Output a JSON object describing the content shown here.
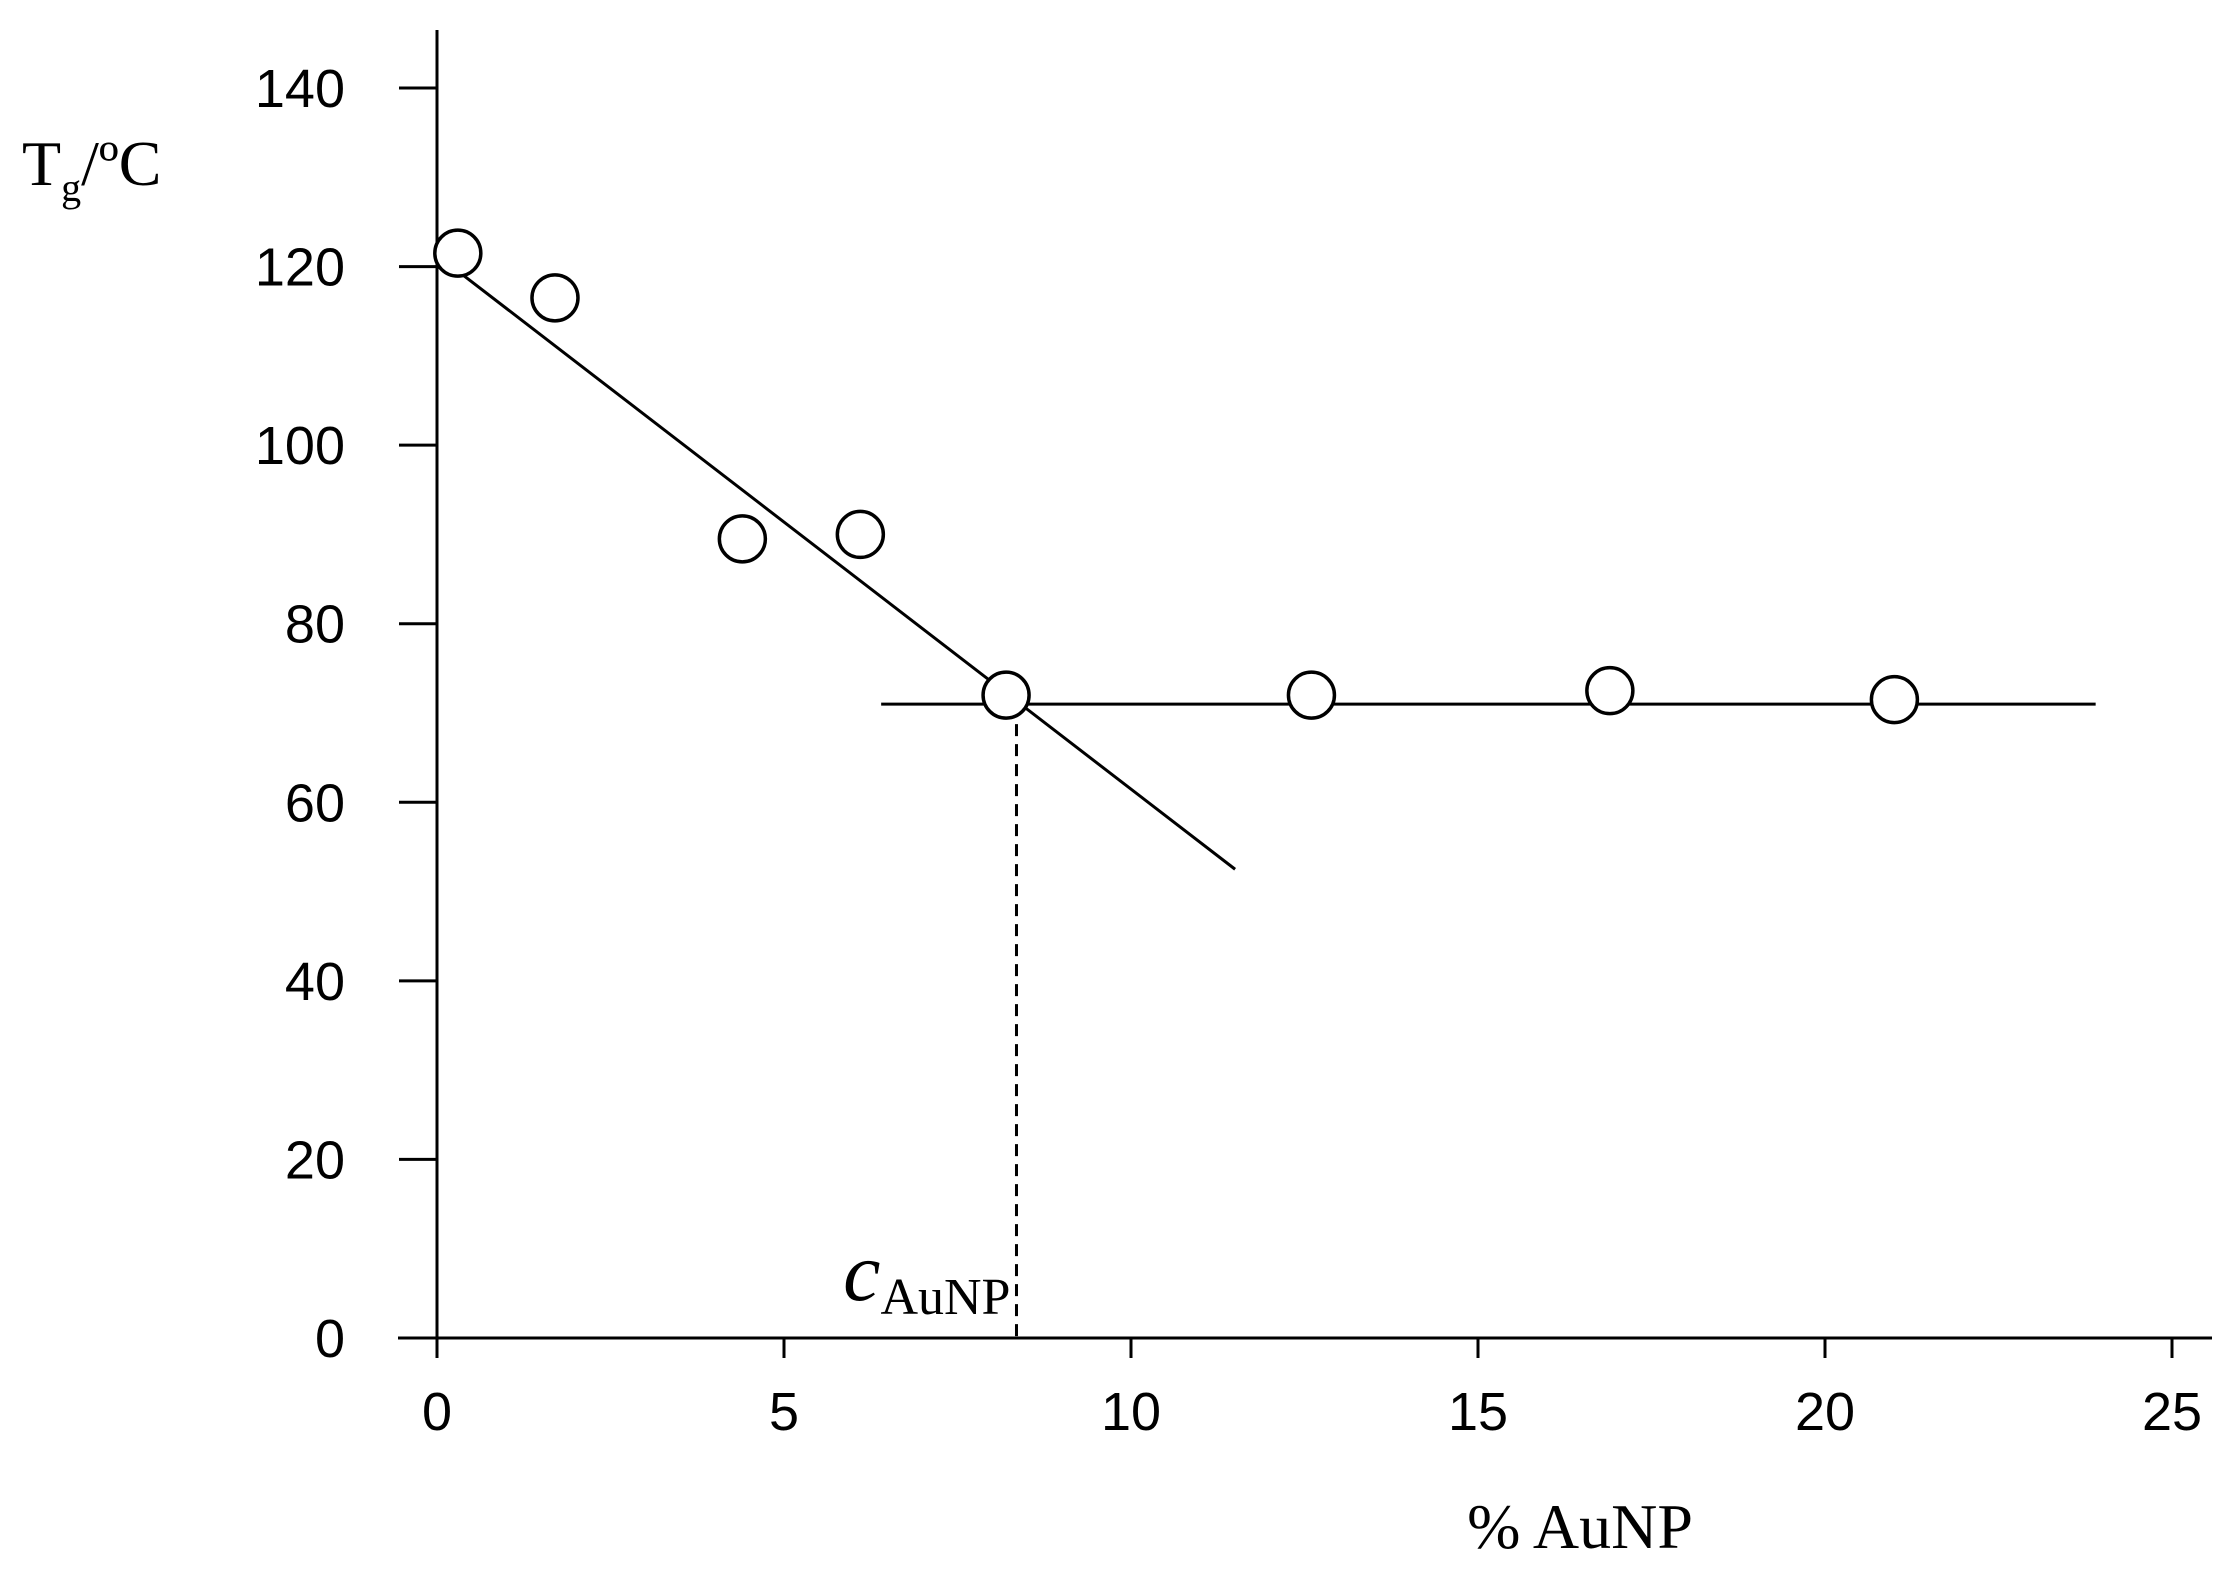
{
  "chart_data": {
    "type": "scatter",
    "ylabel": {
      "main": "T",
      "sub": "g",
      "tail": "/ºC"
    },
    "xlabel": "% AuNP",
    "xlim": [
      0,
      25
    ],
    "ylim": [
      0,
      140
    ],
    "x_ticks": [
      "0",
      "5",
      "10",
      "15",
      "20",
      "25"
    ],
    "y_ticks": [
      "0",
      "20",
      "40",
      "60",
      "80",
      "100",
      "120",
      "140"
    ],
    "series": [
      {
        "points": [
          {
            "x": 0.3,
            "y": 121.5
          },
          {
            "x": 1.7,
            "y": 116.5
          },
          {
            "x": 4.4,
            "y": 89.5
          },
          {
            "x": 6.1,
            "y": 90
          },
          {
            "x": 8.2,
            "y": 72
          },
          {
            "x": 12.6,
            "y": 72
          },
          {
            "x": 16.9,
            "y": 72.5
          },
          {
            "x": 21,
            "y": 71.5
          }
        ]
      }
    ],
    "fit_lines": [
      {
        "from": {
          "x": 0.3,
          "y": 119.5
        },
        "to": {
          "x": 11.5,
          "y": 52.5
        }
      },
      {
        "from": {
          "x": 6.4,
          "y": 71
        },
        "to": {
          "x": 23.9,
          "y": 71
        }
      }
    ],
    "annotation": {
      "label_main": "c",
      "label_sub": "AuNP",
      "x": 8.35,
      "y_top": 71
    },
    "grid": false,
    "legend": "none"
  }
}
